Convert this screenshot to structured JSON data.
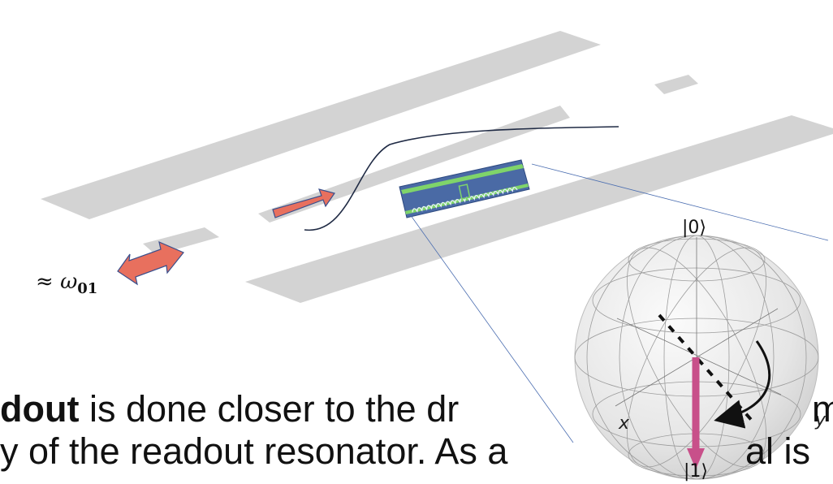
{
  "omega_label": {
    "prefix": "≈ ",
    "symbol": "ω",
    "subscript": "01"
  },
  "bloch": {
    "top_label": "|0⟩",
    "bottom_label": "|1⟩",
    "x_axis": "x",
    "y_axis": "y"
  },
  "body_text": {
    "line1_bold": "dout",
    "line1_rest": " is done closer to the dr",
    "line1_tail": "m",
    "line2": "y of the readout resonator. As a",
    "line2_tail": "al is"
  },
  "colors": {
    "strip": "#d3d3d3",
    "arrow_fill": "#e8705e",
    "arrow_stroke": "#3a4f8c",
    "chip_bg": "#4a6aa5",
    "chip_trace": "#7fd46a",
    "state_vector": "#c8508a",
    "curve": "#1f2a44"
  }
}
